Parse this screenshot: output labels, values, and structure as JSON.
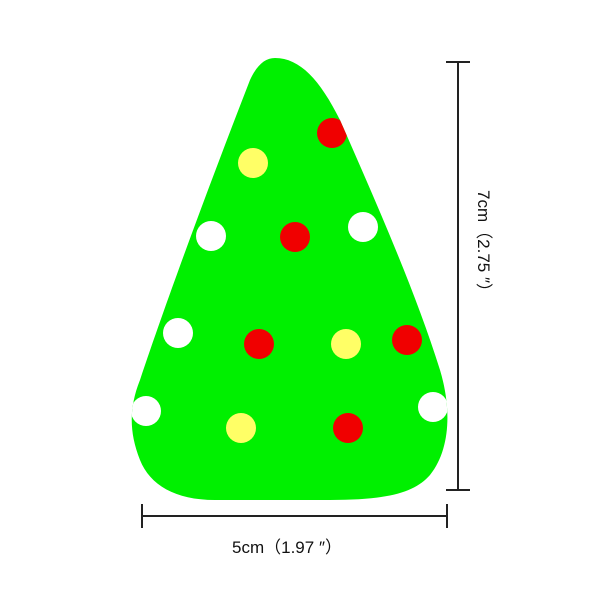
{
  "dimensions": {
    "width_label": "5cm（1.97 ″）",
    "height_label": "7cm（2.75 ″）"
  }
}
